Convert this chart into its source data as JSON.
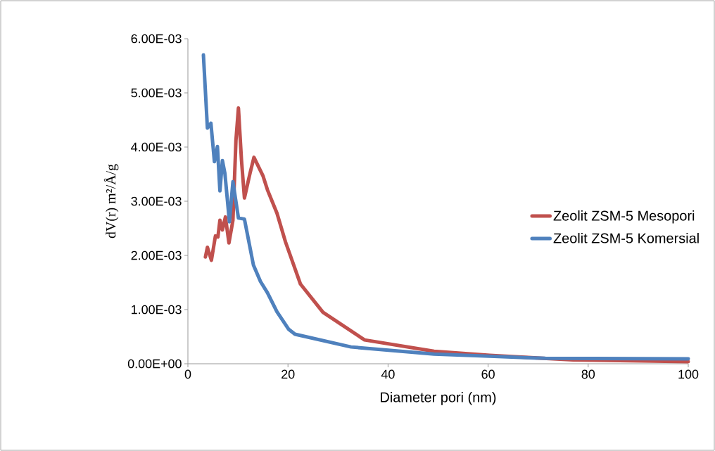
{
  "chart_data": {
    "type": "line",
    "xlabel": "Diameter pori (nm)",
    "ylabel": "dV(r)   m²/Å/g",
    "xlim": [
      0,
      100
    ],
    "xticks": [
      0,
      20,
      40,
      60,
      80,
      100
    ],
    "ylim": [
      0,
      0.006
    ],
    "yticks": [
      {
        "value": 0,
        "label": "0.00E+00"
      },
      {
        "value": 0.001,
        "label": "1.00E-03"
      },
      {
        "value": 0.002,
        "label": "2.00E-03"
      },
      {
        "value": 0.003,
        "label": "3.00E-03"
      },
      {
        "value": 0.004,
        "label": "4.00E-03"
      },
      {
        "value": 0.005,
        "label": "5.00E-03"
      },
      {
        "value": 0.006,
        "label": "6.00E-03"
      }
    ],
    "legend": "right",
    "grid": false,
    "marker": "none",
    "line_style": "solid",
    "series": [
      {
        "name": "Zeolit ZSM-5 Mesopori",
        "color": "#c0504d",
        "x": [
          3.5,
          3.9,
          4.7,
          5.5,
          6.0,
          6.4,
          6.9,
          7.5,
          8.2,
          9.0,
          9.6,
          10.1,
          10.7,
          11.3,
          12.4,
          13.2,
          15.0,
          15.9,
          17.8,
          19.5,
          22.5,
          27,
          35.3,
          49.2,
          60.3,
          77,
          100
        ],
        "values": [
          0.00197,
          0.00215,
          0.00191,
          0.00236,
          0.00234,
          0.00265,
          0.00247,
          0.00271,
          0.00223,
          0.00265,
          0.00412,
          0.00472,
          0.00377,
          0.00306,
          0.00351,
          0.00381,
          0.00347,
          0.00321,
          0.00278,
          0.00225,
          0.00147,
          0.00095,
          0.00044,
          0.00023,
          0.000155,
          7e-05,
          4e-05
        ]
      },
      {
        "name": "Zeolit ZSM-5 Komersial",
        "color": "#4f81bd",
        "x": [
          3.1,
          3.9,
          4.6,
          5.3,
          5.9,
          6.4,
          6.9,
          7.4,
          8.3,
          9.0,
          10.1,
          11.3,
          13.1,
          14.5,
          15.9,
          17.8,
          20.1,
          21.4,
          32.6,
          49.2,
          71.4,
          100
        ],
        "values": [
          0.0057,
          0.00435,
          0.00444,
          0.00373,
          0.00401,
          0.00319,
          0.00375,
          0.00351,
          0.00262,
          0.00336,
          0.00269,
          0.00267,
          0.00182,
          0.00152,
          0.00131,
          0.00096,
          0.00064,
          0.000545,
          0.00031,
          0.00018,
          0.0001,
          9e-05
        ]
      }
    ]
  }
}
